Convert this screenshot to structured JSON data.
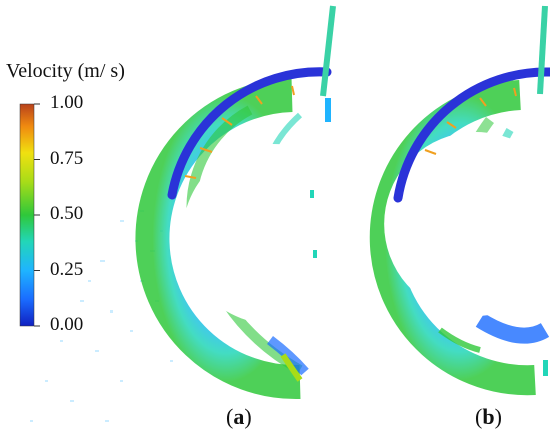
{
  "legend": {
    "title": "Velocity (m/ s)",
    "ticks": [
      "1.00",
      "0.75",
      "0.50",
      "0.25",
      "0.00"
    ],
    "colors": [
      "#1020c0",
      "#1a6cff",
      "#1fb4ff",
      "#22d6b8",
      "#2fc83a",
      "#a8dc18",
      "#f0e010",
      "#f08a10",
      "#b8421c"
    ]
  },
  "panels": [
    {
      "open": "(",
      "letter": "a",
      "close": ")"
    },
    {
      "open": "(",
      "letter": "b",
      "close": ")"
    }
  ]
}
